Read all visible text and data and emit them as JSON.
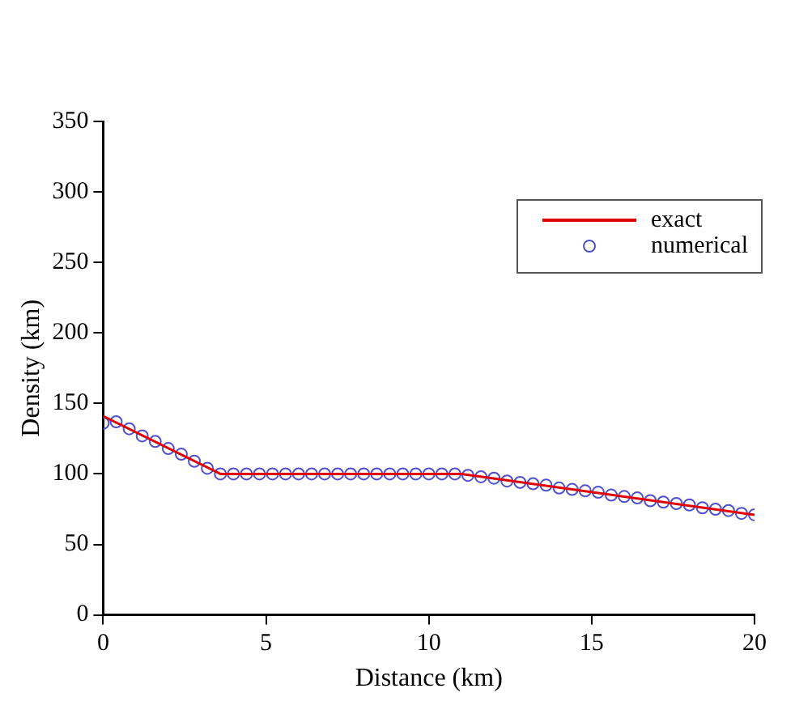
{
  "chart_data": {
    "type": "line",
    "xlabel": "Distance (km)",
    "ylabel": "Density (km)",
    "xlim": [
      0,
      20
    ],
    "xticks": [
      0,
      5,
      10,
      15,
      20
    ],
    "ylim": [
      0,
      350
    ],
    "yticks": [
      0,
      50,
      100,
      150,
      200,
      250,
      300,
      350
    ],
    "grid": false,
    "legend": "top right",
    "series": [
      {
        "name": "exact",
        "type": "line",
        "color": "#e00000",
        "marker": "none",
        "line_style": "solid",
        "x": [
          0,
          3.6,
          11,
          20
        ],
        "values": [
          141,
          100,
          100,
          71
        ]
      },
      {
        "name": "numerical",
        "type": "scatter",
        "color": "#5050d0",
        "marker": "circle",
        "x": [
          0,
          0.4,
          0.8,
          1.2,
          1.6,
          2.0,
          2.4,
          2.8,
          3.2,
          3.6,
          4.0,
          4.4,
          4.8,
          5.2,
          5.6,
          6.0,
          6.4,
          6.8,
          7.2,
          7.6,
          8.0,
          8.4,
          8.8,
          9.2,
          9.6,
          10.0,
          10.4,
          10.8,
          11.2,
          11.6,
          12.0,
          12.4,
          12.8,
          13.2,
          13.6,
          14.0,
          14.4,
          14.8,
          15.2,
          15.6,
          16.0,
          16.4,
          16.8,
          17.2,
          17.6,
          18.0,
          18.4,
          18.8,
          19.2,
          19.6,
          20.0
        ],
        "values": [
          136,
          137,
          132,
          127,
          123,
          118,
          114,
          109,
          104,
          100,
          100,
          100,
          100,
          100,
          100,
          100,
          100,
          100,
          100,
          100,
          100,
          100,
          100,
          100,
          100,
          100,
          100,
          100,
          99,
          98,
          97,
          95,
          94,
          93,
          92,
          90,
          89,
          88,
          87,
          85,
          84,
          83,
          81,
          80,
          79,
          78,
          76,
          75,
          74,
          72,
          71
        ]
      }
    ]
  }
}
